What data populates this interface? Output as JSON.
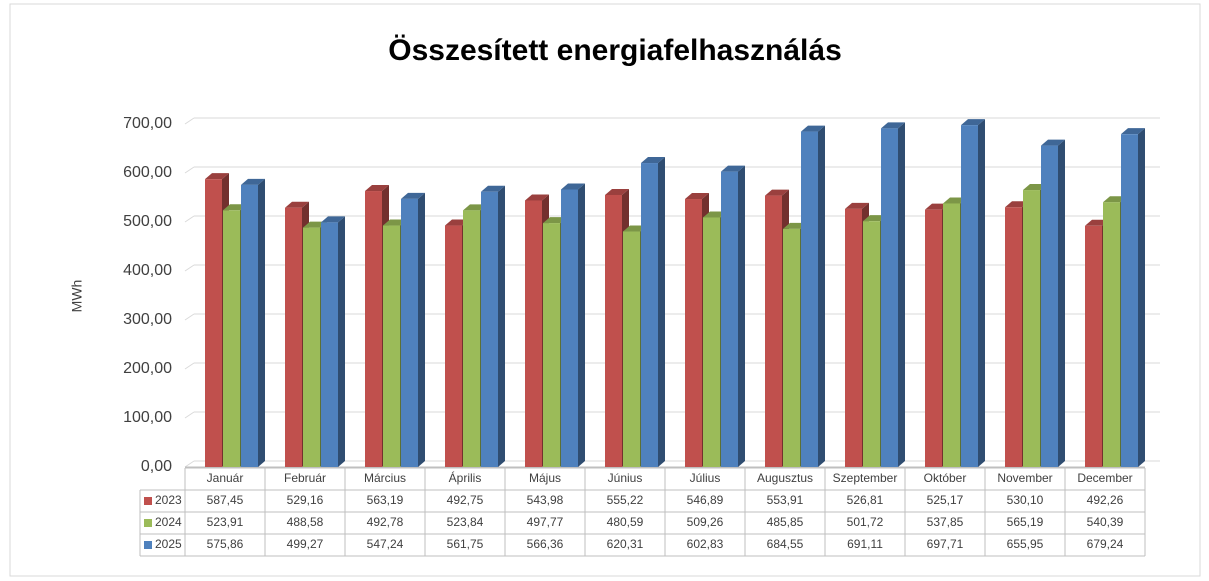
{
  "chart_data": {
    "type": "bar3d",
    "title": "Összesített energiafelhasználás",
    "y_label": "MWh",
    "categories": [
      "Január",
      "Február",
      "Március",
      "Április",
      "Május",
      "Június",
      "Július",
      "Augusztus",
      "Szeptember",
      "Október",
      "November",
      "December"
    ],
    "series": [
      {
        "name": "2023",
        "color": "#c0504d",
        "values": [
          587.45,
          529.16,
          563.19,
          492.75,
          543.98,
          555.22,
          546.89,
          553.91,
          526.81,
          525.17,
          530.1,
          492.26
        ],
        "value_labels": [
          "587,45",
          "529,16",
          "563,19",
          "492,75",
          "543,98",
          "555,22",
          "546,89",
          "553,91",
          "526,81",
          "525,17",
          "530,10",
          "492,26"
        ]
      },
      {
        "name": "2024",
        "color": "#9bbb59",
        "values": [
          523.91,
          488.58,
          492.78,
          523.84,
          497.77,
          480.59,
          509.26,
          485.85,
          501.72,
          537.85,
          565.19,
          540.39
        ],
        "value_labels": [
          "523,91",
          "488,58",
          "492,78",
          "523,84",
          "497,77",
          "480,59",
          "509,26",
          "485,85",
          "501,72",
          "537,85",
          "565,19",
          "540,39"
        ]
      },
      {
        "name": "2025",
        "color": "#4f81bd",
        "values": [
          575.86,
          499.27,
          547.24,
          561.75,
          566.36,
          620.31,
          602.83,
          684.55,
          691.11,
          697.71,
          655.95,
          679.24
        ],
        "value_labels": [
          "575,86",
          "499,27",
          "547,24",
          "561,75",
          "566,36",
          "620,31",
          "602,83",
          "684,55",
          "691,11",
          "697,71",
          "655,95",
          "679,24"
        ]
      }
    ],
    "ylim": [
      0,
      700
    ],
    "yticks": [
      {
        "value": 0,
        "label": "0,00"
      },
      {
        "value": 100,
        "label": "100,00"
      },
      {
        "value": 200,
        "label": "200,00"
      },
      {
        "value": 300,
        "label": "300,00"
      },
      {
        "value": 400,
        "label": "400,00"
      },
      {
        "value": 500,
        "label": "500,00"
      },
      {
        "value": 600,
        "label": "600,00"
      },
      {
        "value": 700,
        "label": "700,00"
      }
    ],
    "grid": true,
    "legend": "table"
  }
}
